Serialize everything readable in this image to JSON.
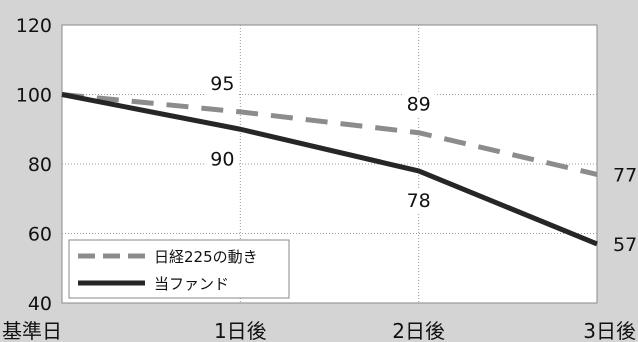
{
  "chart_data": {
    "type": "line",
    "categories": [
      "基準日",
      "1日後",
      "2日後",
      "3日後"
    ],
    "ylim": [
      40,
      120
    ],
    "yticks": [
      40,
      60,
      80,
      100,
      120
    ],
    "grid": true,
    "legend_position": "bottom-left",
    "series": [
      {
        "name": "日経225の動き",
        "values": [
          100,
          95,
          89,
          77
        ],
        "labels": [
          "",
          "95",
          "89",
          "77"
        ],
        "color": "#8c8c8c",
        "style": "dashed"
      },
      {
        "name": "当ファンド",
        "values": [
          100,
          90,
          78,
          57
        ],
        "labels": [
          "",
          "90",
          "78",
          "57"
        ],
        "color": "#262626",
        "style": "solid"
      }
    ]
  }
}
